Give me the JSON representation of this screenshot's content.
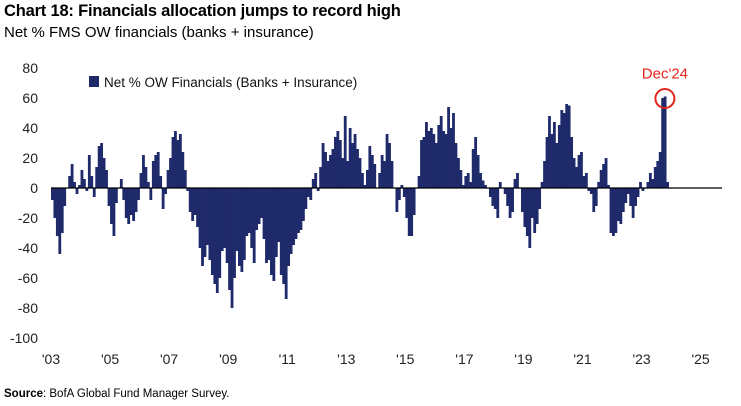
{
  "header": {
    "title": "Chart 18: Financials allocation jumps to record high",
    "subtitle": "Net % FMS OW financials (banks + insurance)"
  },
  "footer": {
    "source_label": "Source",
    "source_text": ": BofA Global Fund Manager Survey."
  },
  "colors": {
    "bar": "#1f2a6b",
    "axis": "#000000",
    "highlight": "#e2231a"
  },
  "chart_data": {
    "type": "bar",
    "title": "Chart 18: Financials allocation jumps to record high",
    "ylabel": "Net % FMS OW financials (banks + insurance)",
    "xlabel": "",
    "ylim": [
      -100,
      80
    ],
    "yticks": [
      80,
      60,
      40,
      20,
      0,
      -20,
      -40,
      -60,
      -80,
      -100
    ],
    "xlim": [
      2003.0,
      2025.25
    ],
    "xticks": [
      {
        "year": 2003,
        "label": "'03"
      },
      {
        "year": 2005,
        "label": "'05"
      },
      {
        "year": 2007,
        "label": "'07"
      },
      {
        "year": 2009,
        "label": "'09"
      },
      {
        "year": 2011,
        "label": "'11"
      },
      {
        "year": 2013,
        "label": "'13"
      },
      {
        "year": 2015,
        "label": "'15"
      },
      {
        "year": 2017,
        "label": "'17"
      },
      {
        "year": 2019,
        "label": "'19"
      },
      {
        "year": 2021,
        "label": "'21"
      },
      {
        "year": 2023,
        "label": "'23"
      },
      {
        "year": 2025,
        "label": "'25"
      }
    ],
    "legend": {
      "label": "Net % OW Financials (Banks + Insurance)",
      "position": "top-left"
    },
    "annotation": {
      "label": "Dec'24",
      "value": 61
    },
    "grid": false,
    "start": "Jan 2003",
    "frequency": "monthly",
    "series": [
      {
        "name": "Net % OW Financials (Banks + Insurance)",
        "values": [
          -8,
          -20,
          -32,
          -44,
          -30,
          -12,
          0,
          8,
          16,
          4,
          -4,
          2,
          12,
          6,
          -2,
          22,
          8,
          -6,
          14,
          28,
          30,
          20,
          12,
          -12,
          -24,
          -32,
          -10,
          0,
          6,
          -8,
          -20,
          -24,
          -18,
          -22,
          -16,
          -8,
          10,
          22,
          14,
          4,
          -8,
          18,
          22,
          24,
          8,
          -14,
          -4,
          12,
          20,
          34,
          38,
          32,
          36,
          24,
          12,
          -2,
          -16,
          -22,
          -18,
          -26,
          -40,
          -52,
          -46,
          -38,
          -48,
          -58,
          -64,
          -70,
          -60,
          -42,
          -40,
          -50,
          -68,
          -80,
          -60,
          -42,
          -52,
          -56,
          -48,
          -32,
          -30,
          -40,
          -50,
          -28,
          -24,
          -20,
          -34,
          -50,
          -48,
          -58,
          -62,
          -46,
          -36,
          -58,
          -64,
          -74,
          -52,
          -44,
          -38,
          -34,
          -30,
          -28,
          -22,
          -14,
          -6,
          -8,
          6,
          10,
          -2,
          14,
          30,
          24,
          18,
          22,
          26,
          34,
          38,
          32,
          20,
          48,
          18,
          40,
          30,
          36,
          26,
          20,
          10,
          2,
          12,
          28,
          22,
          16,
          0,
          10,
          22,
          18,
          36,
          30,
          18,
          0,
          -16,
          -8,
          2,
          -6,
          -20,
          -32,
          -32,
          -18,
          0,
          8,
          32,
          34,
          44,
          38,
          40,
          36,
          30,
          42,
          48,
          38,
          36,
          54,
          40,
          50,
          30,
          20,
          12,
          2,
          8,
          10,
          4,
          26,
          34,
          22,
          10,
          5,
          2,
          0,
          -6,
          -12,
          -14,
          -20,
          4,
          0,
          -4,
          -12,
          -20,
          -16,
          6,
          10,
          0,
          -16,
          -26,
          -32,
          -40,
          -20,
          -30,
          -24,
          -14,
          4,
          18,
          34,
          48,
          36,
          44,
          30,
          42,
          52,
          50,
          56,
          55,
          34,
          20,
          14,
          22,
          24,
          8,
          10,
          -2,
          -4,
          -16,
          -12,
          4,
          12,
          16,
          20,
          2,
          -30,
          -32,
          -30,
          -22,
          -24,
          -16,
          -10,
          -4,
          -12,
          -20,
          -12,
          -6,
          4,
          -2,
          0,
          4,
          10,
          6,
          14,
          18,
          24,
          60,
          61,
          4,
          0
        ]
      }
    ]
  }
}
